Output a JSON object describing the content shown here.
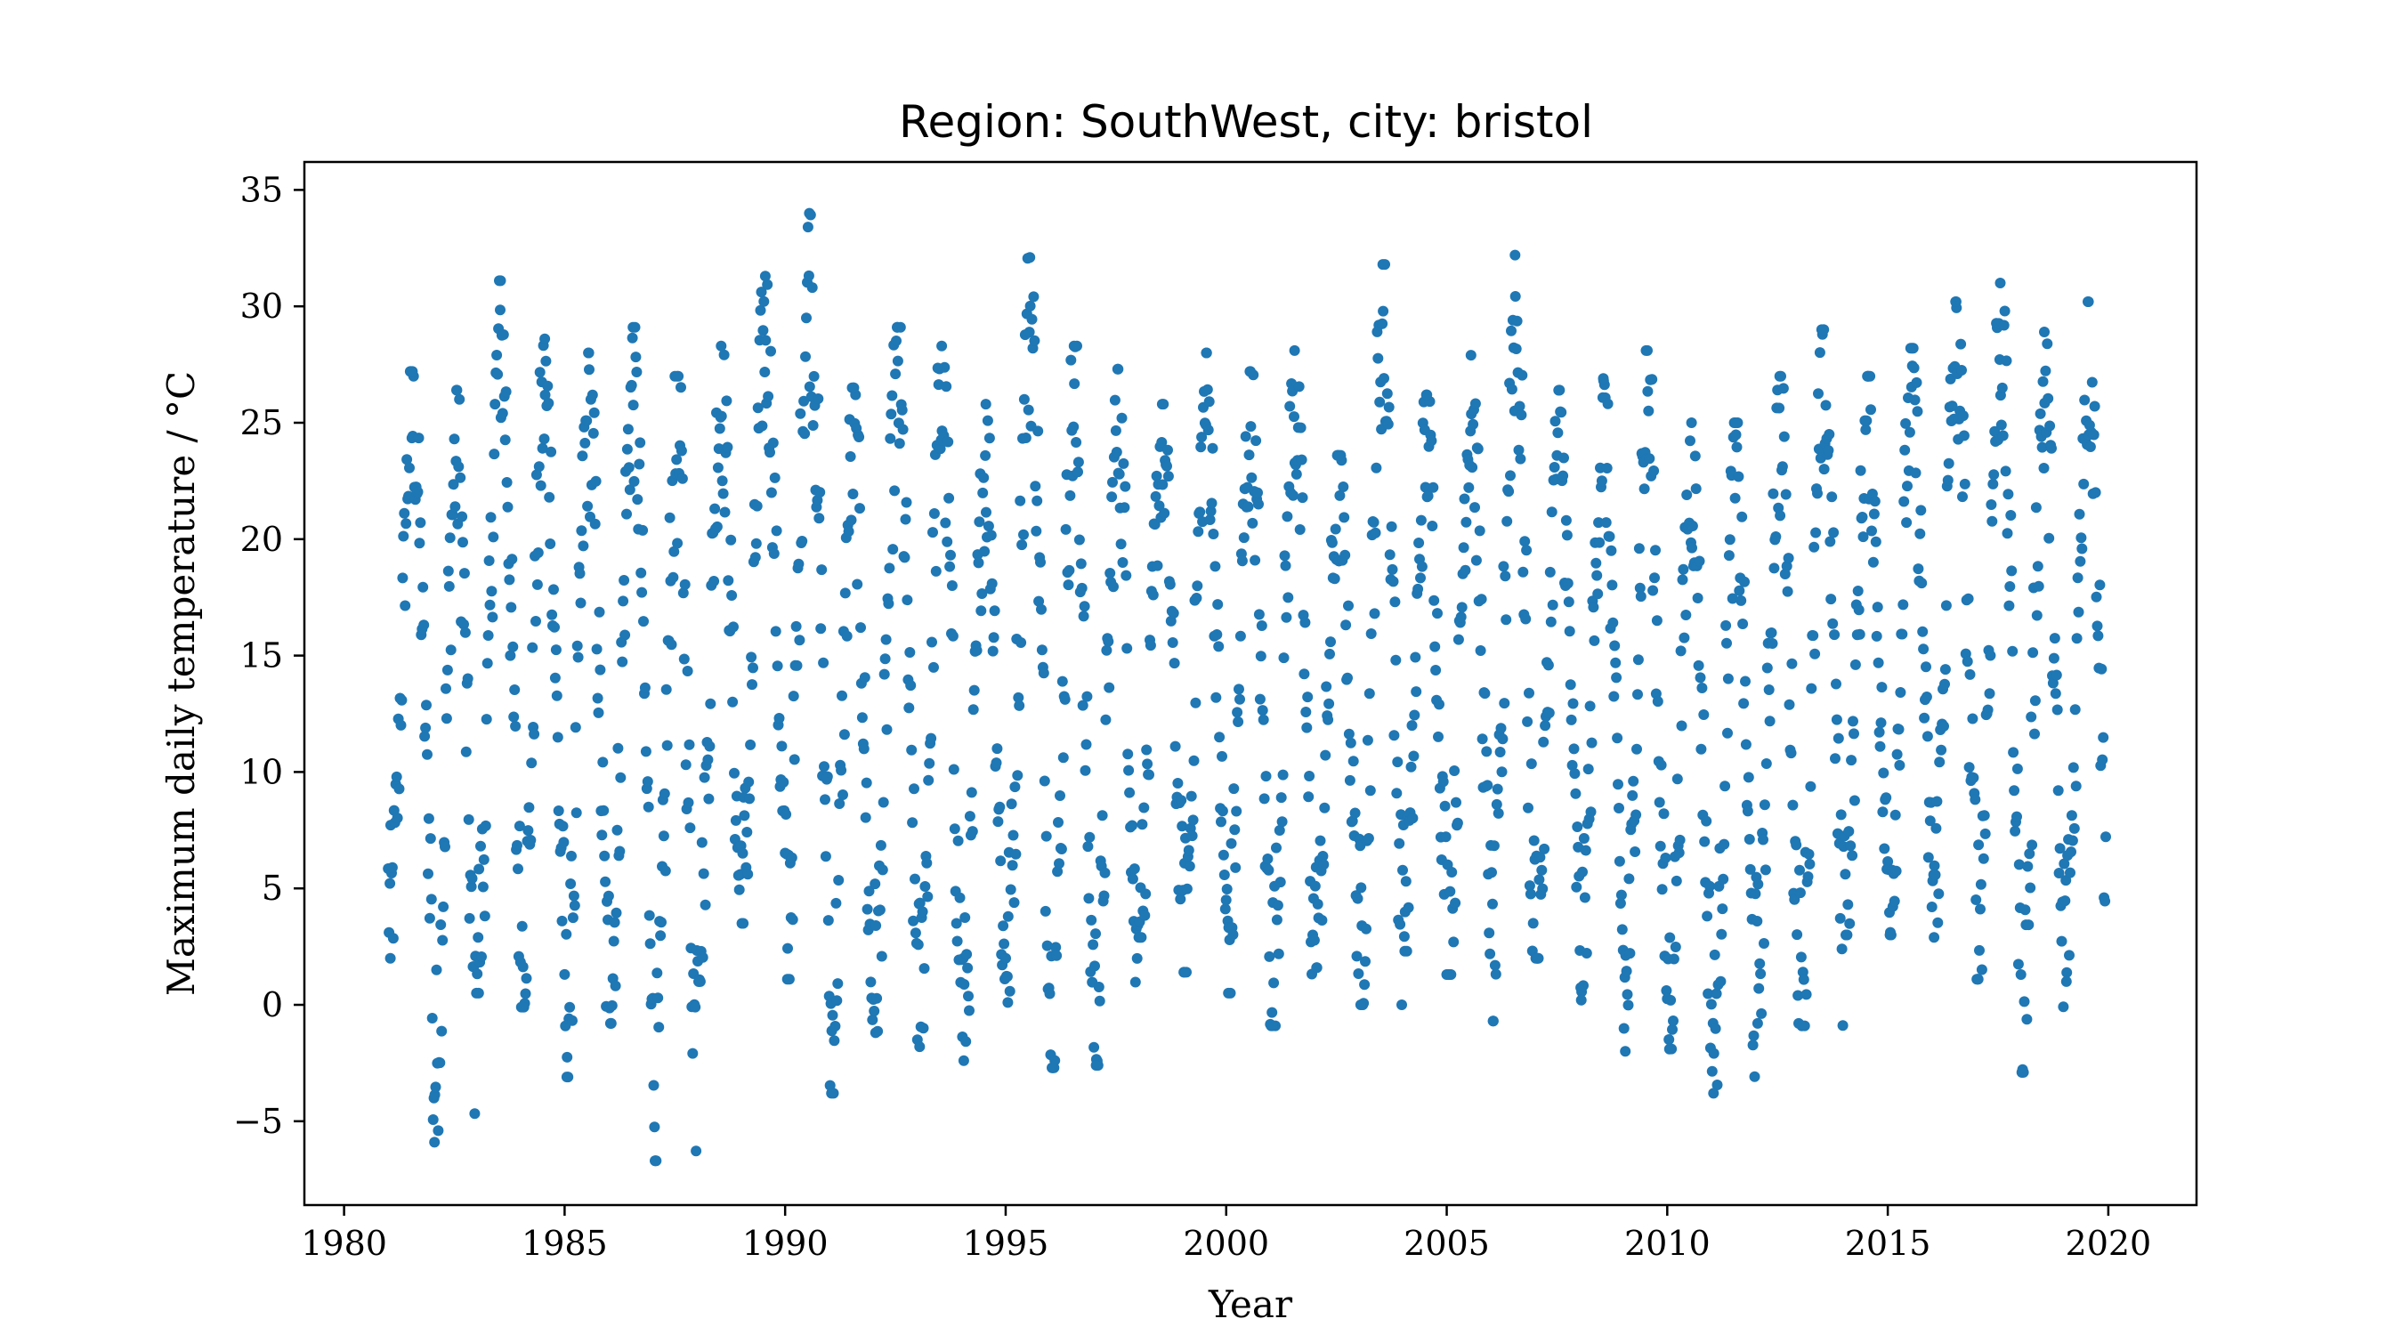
{
  "chart_data": {
    "type": "scatter",
    "title": "Region: SouthWest, city: bristol",
    "xlabel": "Year",
    "ylabel": "Maximum daily temperature / °C",
    "xlim": [
      1979.1,
      2022.0
    ],
    "ylim": [
      -8.6,
      36.2
    ],
    "x_ticks": [
      1980,
      1985,
      1990,
      1995,
      2000,
      2005,
      2010,
      2015,
      2020
    ],
    "x_tick_labels": [
      "1980",
      "1985",
      "1990",
      "1995",
      "2000",
      "2005",
      "2010",
      "2015",
      "2020"
    ],
    "y_ticks": [
      -5,
      0,
      5,
      10,
      15,
      20,
      25,
      30,
      35
    ],
    "y_tick_labels": [
      "−5",
      "0",
      "5",
      "10",
      "15",
      "20",
      "25",
      "30",
      "35"
    ],
    "grid": false,
    "marker_color": "#1f77b4",
    "series": [
      {
        "name": "",
        "x_range": [
          1981.0,
          2019.95
        ],
        "points_per_year": 52,
        "yearly": [
          {
            "year": 1981,
            "summer_peak": 27.2,
            "winter_low": 2.0
          },
          {
            "year": 1982,
            "summer_peak": 26.4,
            "winter_low": -5.9
          },
          {
            "year": 1983,
            "summer_peak": 31.1,
            "winter_low": 0.5
          },
          {
            "year": 1984,
            "summer_peak": 28.6,
            "winter_low": -0.1
          },
          {
            "year": 1985,
            "summer_peak": 28.0,
            "winter_low": -3.1
          },
          {
            "year": 1986,
            "summer_peak": 29.1,
            "winter_low": -0.8
          },
          {
            "year": 1987,
            "summer_peak": 27.0,
            "winter_low": -6.7
          },
          {
            "year": 1988,
            "summer_peak": 28.3,
            "winter_low": 1.0
          },
          {
            "year": 1989,
            "summer_peak": 31.3,
            "winter_low": 3.5
          },
          {
            "year": 1990,
            "summer_peak": 34.0,
            "winter_low": 1.1
          },
          {
            "year": 1991,
            "summer_peak": 26.5,
            "winter_low": -3.8
          },
          {
            "year": 1992,
            "summer_peak": 29.1,
            "winter_low": -1.2
          },
          {
            "year": 1993,
            "summer_peak": 28.3,
            "winter_low": -1.8
          },
          {
            "year": 1994,
            "summer_peak": 25.8,
            "winter_low": -2.4
          },
          {
            "year": 1995,
            "summer_peak": 32.1,
            "winter_low": 0.1
          },
          {
            "year": 1996,
            "summer_peak": 28.3,
            "winter_low": -2.7
          },
          {
            "year": 1997,
            "summer_peak": 27.3,
            "winter_low": -2.6
          },
          {
            "year": 1998,
            "summer_peak": 25.8,
            "winter_low": 2.9
          },
          {
            "year": 1999,
            "summer_peak": 28.0,
            "winter_low": 1.4
          },
          {
            "year": 2000,
            "summer_peak": 27.2,
            "winter_low": 0.5
          },
          {
            "year": 2001,
            "summer_peak": 28.1,
            "winter_low": -0.9
          },
          {
            "year": 2002,
            "summer_peak": 23.6,
            "winter_low": 1.6
          },
          {
            "year": 2003,
            "summer_peak": 31.8,
            "winter_low": 0.0
          },
          {
            "year": 2004,
            "summer_peak": 26.2,
            "winter_low": 2.3
          },
          {
            "year": 2005,
            "summer_peak": 27.9,
            "winter_low": 1.3
          },
          {
            "year": 2006,
            "summer_peak": 32.2,
            "winter_low": -0.7
          },
          {
            "year": 2007,
            "summer_peak": 26.4,
            "winter_low": 2.0
          },
          {
            "year": 2008,
            "summer_peak": 26.9,
            "winter_low": 0.2
          },
          {
            "year": 2009,
            "summer_peak": 28.1,
            "winter_low": -2.0
          },
          {
            "year": 2010,
            "summer_peak": 25.0,
            "winter_low": -1.9
          },
          {
            "year": 2011,
            "summer_peak": 25.0,
            "winter_low": -3.8
          },
          {
            "year": 2012,
            "summer_peak": 27.0,
            "winter_low": -0.8
          },
          {
            "year": 2013,
            "summer_peak": 29.0,
            "winter_low": -0.9
          },
          {
            "year": 2014,
            "summer_peak": 27.0,
            "winter_low": 3.0
          },
          {
            "year": 2015,
            "summer_peak": 28.2,
            "winter_low": 3.0
          },
          {
            "year": 2016,
            "summer_peak": 30.2,
            "winter_low": 2.9
          },
          {
            "year": 2017,
            "summer_peak": 31.0,
            "winter_low": 1.1
          },
          {
            "year": 2018,
            "summer_peak": 28.9,
            "winter_low": -2.9
          },
          {
            "year": 2019,
            "summer_peak": 30.2,
            "winter_low": 1.0
          }
        ]
      }
    ]
  }
}
